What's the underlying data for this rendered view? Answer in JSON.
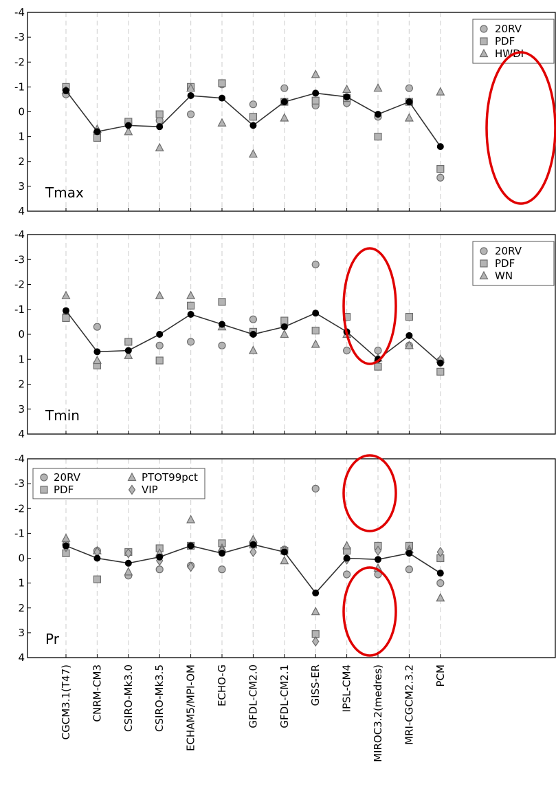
{
  "chart_data": {
    "type": "scatter",
    "models": [
      "CGCM3.1(T47)",
      "CNRM-CM3",
      "CSIRO-Mk3.0",
      "CSIRO-Mk3.5",
      "ECHAM5/MPI-OM",
      "ECHO-G",
      "GFDL-CM2.0",
      "GFDL-CM2.1",
      "GISS-ER",
      "IPSL-CM4",
      "MIROC3.2(medres)",
      "MRI-CGCM2.3.2",
      "PCM"
    ],
    "ylim": [
      4,
      -4
    ],
    "yticks": [
      "-4",
      "-3",
      "-2",
      "-1",
      "0",
      "1",
      "2",
      "3",
      "4"
    ],
    "grid": "vertical dashed",
    "panels": [
      {
        "label": "Tmax",
        "legend_position": "top-right",
        "line_series": [
          -0.85,
          0.8,
          0.55,
          0.6,
          -0.65,
          -0.55,
          0.55,
          -0.4,
          -0.75,
          -0.6,
          0.1,
          -0.4,
          1.4
        ],
        "markers": [
          {
            "name": "20RV",
            "shape": "circle",
            "values": [
              -0.7,
              0.9,
              0.45,
              0.35,
              0.1,
              -1.1,
              -0.3,
              -0.95,
              -0.25,
              -0.35,
              0.2,
              -0.95,
              2.65
            ]
          },
          {
            "name": "PDF",
            "shape": "square",
            "values": [
              -1.0,
              1.05,
              0.4,
              0.1,
              -1.0,
              -1.15,
              0.2,
              -0.4,
              -0.45,
              -0.55,
              1.0,
              -0.4,
              2.3
            ]
          },
          {
            "name": "HWDI",
            "shape": "triangle",
            "values": [
              -0.85,
              0.7,
              0.8,
              1.45,
              -0.95,
              0.45,
              1.7,
              0.25,
              -1.5,
              -0.9,
              -0.95,
              0.25,
              -0.8
            ]
          }
        ]
      },
      {
        "label": "Tmin",
        "legend_position": "top-right",
        "line_series": [
          -0.95,
          0.7,
          0.65,
          0.0,
          -0.8,
          -0.4,
          0.0,
          -0.3,
          -0.85,
          -0.1,
          1.0,
          0.05,
          1.15
        ],
        "markers": [
          {
            "name": "20RV",
            "shape": "circle",
            "values": [
              -0.75,
              -0.3,
              0.3,
              0.45,
              0.3,
              0.45,
              -0.6,
              -0.35,
              -2.8,
              0.65,
              0.65,
              0.45,
              1.05
            ]
          },
          {
            "name": "PDF",
            "shape": "square",
            "values": [
              -0.65,
              1.25,
              0.3,
              1.05,
              -1.15,
              -1.3,
              -0.1,
              -0.55,
              -0.15,
              -0.7,
              1.3,
              -0.7,
              1.5
            ]
          },
          {
            "name": "WN",
            "shape": "triangle",
            "values": [
              -1.55,
              1.05,
              0.85,
              -1.55,
              -1.55,
              -0.3,
              0.65,
              0.0,
              0.4,
              0.0,
              0.95,
              0.45,
              1.0
            ]
          }
        ]
      },
      {
        "label": "Pr",
        "legend_position": "top-left",
        "line_series": [
          -0.5,
          0.0,
          0.2,
          -0.05,
          -0.5,
          -0.2,
          -0.55,
          -0.25,
          1.4,
          0.0,
          0.05,
          -0.2,
          0.6
        ],
        "markers": [
          {
            "name": "20RV",
            "shape": "circle",
            "values": [
              -0.55,
              -0.3,
              0.7,
              0.45,
              0.3,
              0.45,
              -0.6,
              -0.35,
              -2.8,
              0.65,
              0.65,
              0.45,
              1.0
            ]
          },
          {
            "name": "PDF",
            "shape": "square",
            "values": [
              -0.2,
              0.85,
              -0.25,
              -0.4,
              -0.5,
              -0.6,
              -0.55,
              -0.3,
              3.05,
              -0.3,
              -0.5,
              -0.5,
              0.0
            ]
          },
          {
            "name": "PTOT99pct",
            "shape": "triangle",
            "values": [
              -0.8,
              -0.3,
              0.55,
              -0.2,
              -1.55,
              -0.4,
              -0.75,
              0.1,
              2.15,
              -0.5,
              0.4,
              -0.35,
              1.6
            ]
          },
          {
            "name": "VIP",
            "shape": "diamond",
            "values": [
              -0.45,
              -0.25,
              -0.2,
              0.1,
              0.35,
              -0.3,
              -0.25,
              -0.3,
              3.35,
              0.05,
              -0.3,
              -0.25,
              -0.25
            ]
          }
        ]
      }
    ],
    "annotations": [
      {
        "shape": "ellipse",
        "color": "#e00000",
        "panel": 0,
        "around_model": "PCM"
      },
      {
        "shape": "ellipse",
        "color": "#e00000",
        "panel": 1,
        "around_model": "GISS-ER"
      },
      {
        "shape": "ellipse",
        "color": "#e00000",
        "panel": 2,
        "around_model": "GISS-ER",
        "around": "upper"
      },
      {
        "shape": "ellipse",
        "color": "#e00000",
        "panel": 2,
        "around_model": "GISS-ER",
        "around": "lower"
      }
    ]
  },
  "colors": {
    "marker_fill": "#b4b4b4",
    "marker_stroke": "#6e6e6e",
    "line": "#333333",
    "line_point": "#000000",
    "grid": "#d6d6d6",
    "annotation": "#e00000"
  }
}
